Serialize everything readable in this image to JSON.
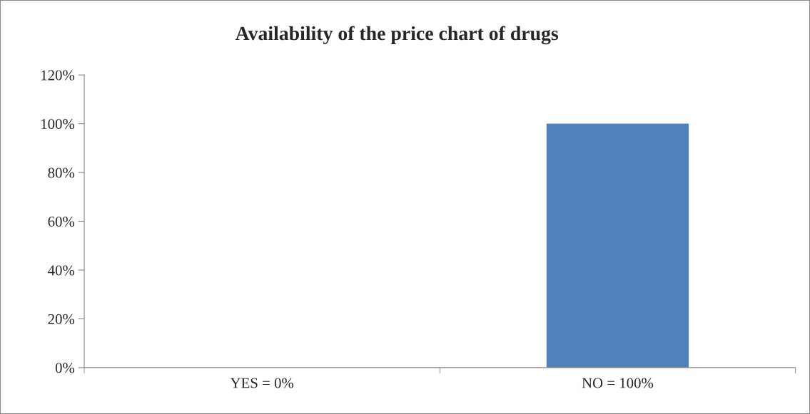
{
  "chart_data": {
    "type": "bar",
    "title": "Availability of the price chart of drugs",
    "categories": [
      "YES = 0%",
      "NO = 100%"
    ],
    "values": [
      0,
      100
    ],
    "color": "#4f81bd",
    "ylim": [
      0,
      120
    ],
    "yticks": [
      {
        "value": 0,
        "label": "0%"
      },
      {
        "value": 20,
        "label": "20%"
      },
      {
        "value": 40,
        "label": "40%"
      },
      {
        "value": 60,
        "label": "60%"
      },
      {
        "value": 80,
        "label": "80%"
      },
      {
        "value": 100,
        "label": "100%"
      },
      {
        "value": 120,
        "label": "120%"
      }
    ],
    "grid": false,
    "legend": false
  }
}
